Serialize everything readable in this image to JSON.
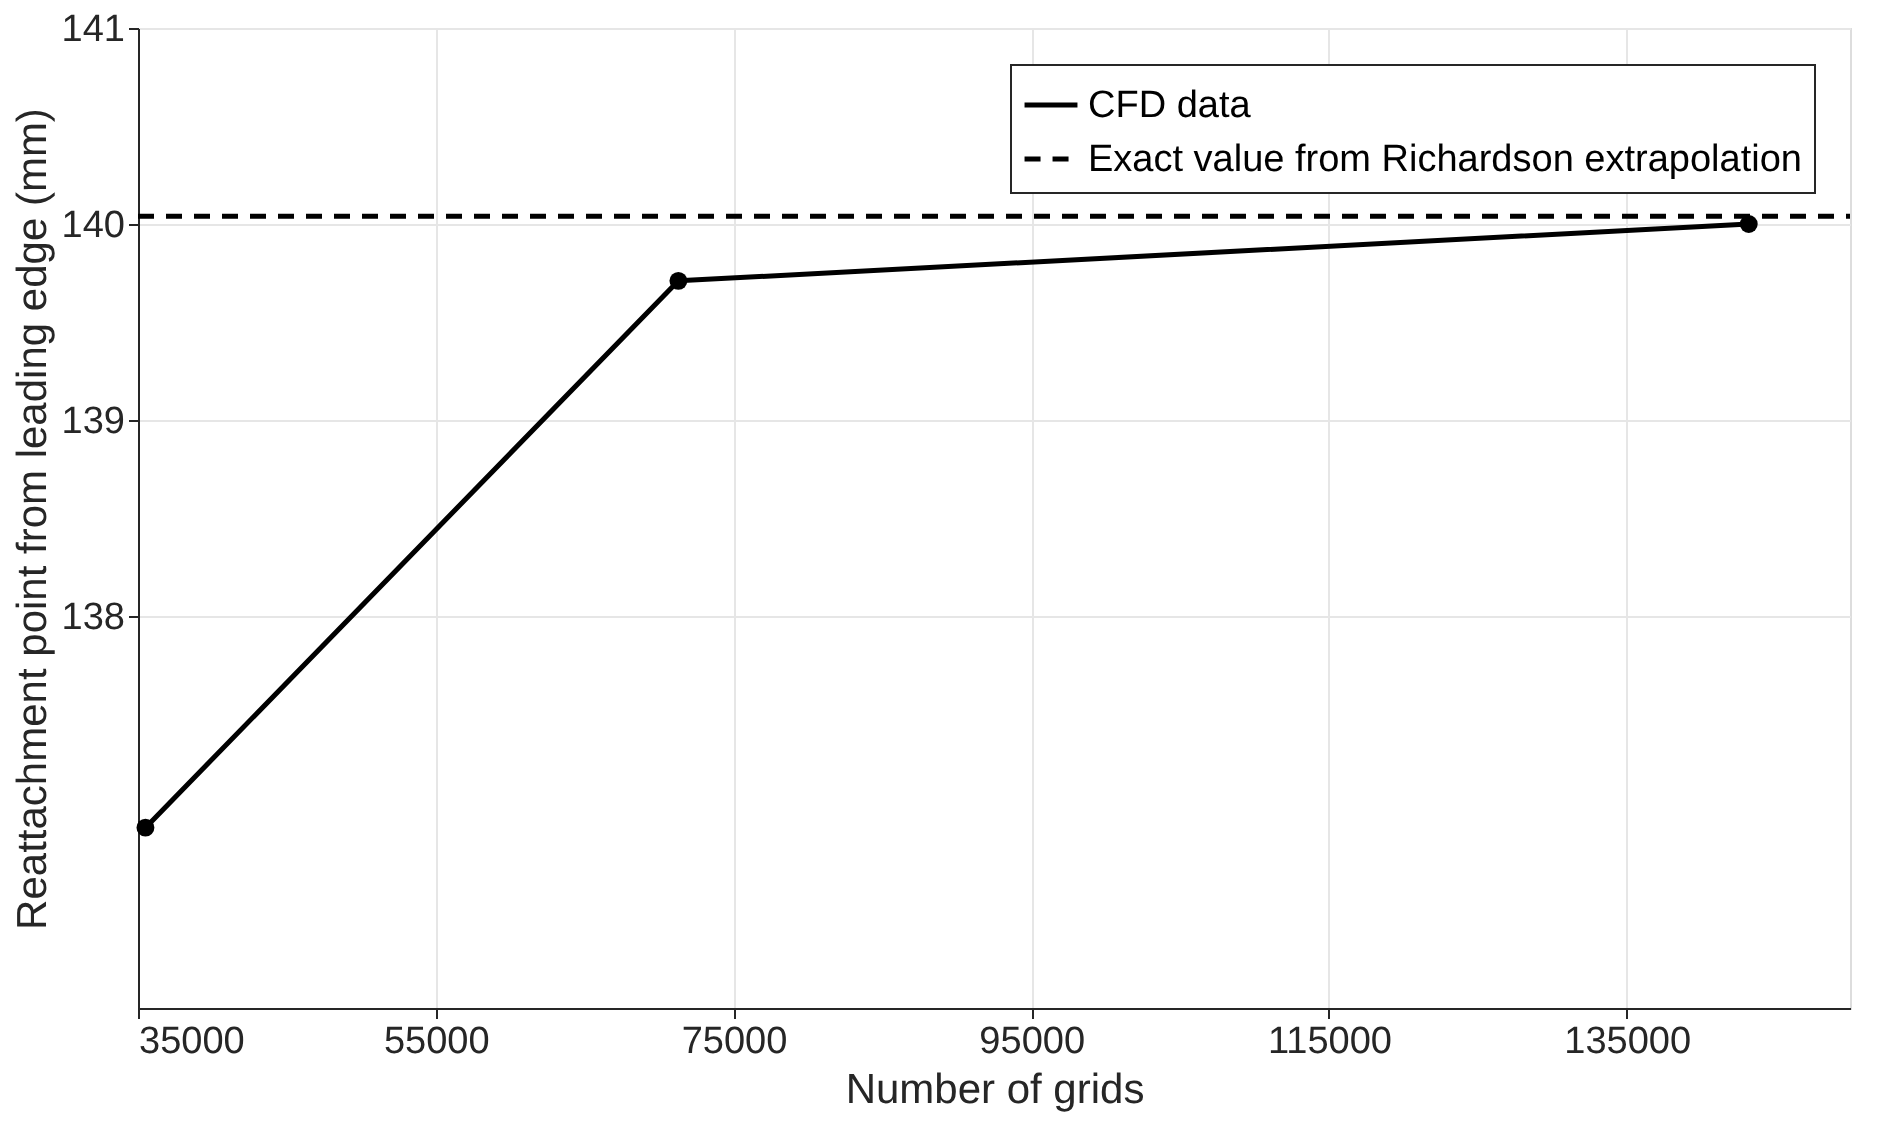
{
  "chart_data": {
    "type": "line",
    "xlabel": "Number of grids",
    "ylabel": "Reattachment point from leading edge (mm)",
    "x": [
      35500,
      71300,
      143200
    ],
    "series": [
      {
        "name": "CFD data",
        "color": "#000000",
        "values": [
          136.92,
          139.71,
          140.0
        ]
      }
    ],
    "ref_lines": [
      {
        "axis": "y",
        "value": 140.04,
        "label": "Exact value from Richardson extrapolation",
        "color": "#000000",
        "line_style": "dashed"
      }
    ],
    "xlim": [
      35000,
      150000
    ],
    "xticks": [
      35000,
      55000,
      75000,
      95000,
      115000,
      135000
    ],
    "ylim": [
      136,
      141
    ],
    "yticks": [
      138,
      139,
      140,
      141
    ],
    "grid": true,
    "legend": "top right",
    "marker": "circle",
    "line_style": "solid"
  }
}
